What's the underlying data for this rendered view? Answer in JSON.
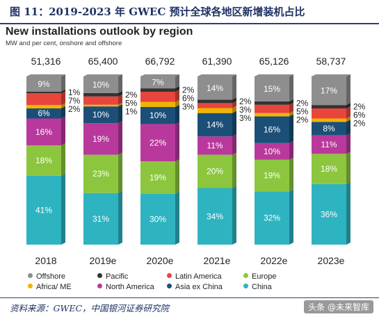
{
  "figure": {
    "header": "图 11：2019-2023 年 GWEC 预计全球各地区新增装机占比",
    "source": "资料来源：GWEC，中国银河证券研究院",
    "watermark": "头条 @未来智库"
  },
  "colors": {
    "Offshore": "#8e8e8e",
    "Pacific": "#333333",
    "Latin America": "#e8453c",
    "Africa/ ME": "#f0b400",
    "North America": "#b8399b",
    "Asia ex China": "#1b4f78",
    "Europe": "#8cc63e",
    "China": "#2eb3c1"
  },
  "chart_data": {
    "type": "bar",
    "title": "New installations outlook by region",
    "subtitle": "MW and per cent, onshore and offshore",
    "categories": [
      "2018",
      "2019e",
      "2020e",
      "2021e",
      "2022e",
      "2023e"
    ],
    "totals": [
      "51,316",
      "65,400",
      "66,792",
      "61,390",
      "65,126",
      "58,737"
    ],
    "series": [
      {
        "name": "China",
        "values": [
          41,
          31,
          30,
          34,
          32,
          36
        ]
      },
      {
        "name": "Europe",
        "values": [
          18,
          23,
          19,
          20,
          19,
          18
        ]
      },
      {
        "name": "North America",
        "values": [
          16,
          19,
          22,
          11,
          10,
          11
        ]
      },
      {
        "name": "Asia ex China",
        "values": [
          6,
          10,
          10,
          14,
          16,
          8
        ]
      },
      {
        "name": "Africa/ ME",
        "values": [
          2,
          1,
          3,
          3,
          2,
          2
        ]
      },
      {
        "name": "Latin America",
        "values": [
          7,
          5,
          6,
          3,
          5,
          6
        ]
      },
      {
        "name": "Pacific",
        "values": [
          1,
          2,
          2,
          2,
          2,
          2
        ]
      },
      {
        "name": "Offshore",
        "values": [
          9,
          10,
          7,
          14,
          15,
          17
        ]
      }
    ],
    "legend": [
      "Offshore",
      "Pacific",
      "Latin America",
      "Europe",
      "Africa/ ME",
      "North America",
      "Asia ex China",
      "China"
    ],
    "legend_position": "bottom",
    "grid": false
  }
}
